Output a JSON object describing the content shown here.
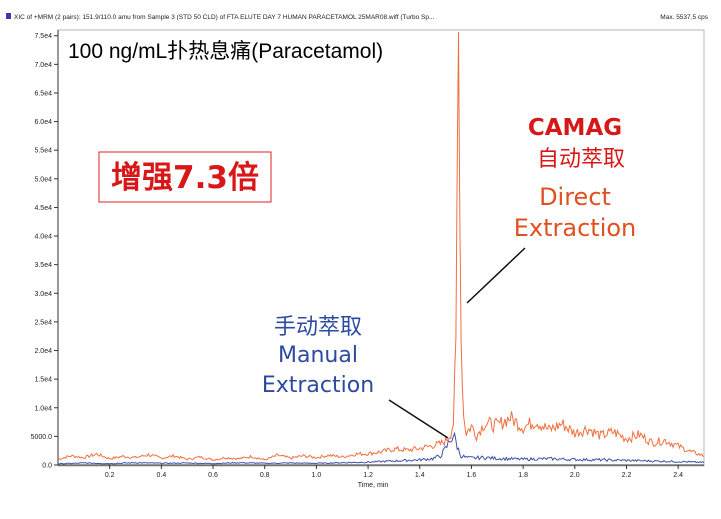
{
  "header": {
    "left": "XIC of +MRM (2 pairs): 151.9/110.0 amu from Sample 3 (STD 50 CLD) of FTA ELUTE DAY 7 HUMAN PARACETAMOL 25MAR08.wiff (Turbo Sp...",
    "right": "Max. 5537.5 cps"
  },
  "title": "100 ng/mL扑热息痛(Paracetamol)",
  "enhancement_label": "增强7.3倍",
  "annotations": {
    "camag": "CAMAG",
    "auto_extraction_cn": "自动萃取",
    "direct_line1": "Direct",
    "direct_line2": "Extraction",
    "manual_cn": "手动萃取",
    "manual_line1": "Manual",
    "manual_line2": "Extraction"
  },
  "colors": {
    "direct": "#f07040",
    "manual": "#3d50a8",
    "annotation_red": "#d81818",
    "manual_text": "#2c4aa0",
    "enhance_box": "#e02020"
  },
  "chart_data": {
    "type": "line",
    "title": "100 ng/mL扑热息痛(Paracetamol)",
    "xlabel": "Time, min",
    "ylabel": "",
    "xlim": [
      0.0,
      2.5
    ],
    "ylim": [
      0,
      76000
    ],
    "x_ticks": [
      0.2,
      0.4,
      0.6,
      0.8,
      1.0,
      1.2,
      1.4,
      1.6,
      1.8,
      2.0,
      2.2,
      2.4
    ],
    "x_tick_labels": [
      "0.2",
      "0.4",
      "0.6",
      "0.8",
      "1.0",
      "1.2",
      "1.4",
      "1.6",
      "1.8",
      "2.0",
      "2.2",
      "2.4"
    ],
    "y_ticks": [
      0,
      5000,
      10000,
      15000,
      20000,
      25000,
      30000,
      35000,
      40000,
      45000,
      50000,
      55000,
      60000,
      65000,
      70000,
      75000
    ],
    "y_tick_labels": [
      "0.0",
      "5000.0",
      "1.0e4",
      "1.5e4",
      "2.0e4",
      "2.5e4",
      "3.0e4",
      "3.5e4",
      "4.0e4",
      "4.5e4",
      "5.0e4",
      "5.5e4",
      "6.0e4",
      "6.5e4",
      "7.0e4",
      "7.5e4"
    ],
    "grid": false,
    "series": [
      {
        "name": "Direct Extraction",
        "color": "#f07040",
        "x": [
          0.0,
          0.05,
          0.1,
          0.15,
          0.2,
          0.25,
          0.3,
          0.35,
          0.4,
          0.45,
          0.5,
          0.55,
          0.6,
          0.65,
          0.7,
          0.75,
          0.8,
          0.85,
          0.9,
          0.95,
          1.0,
          1.05,
          1.1,
          1.15,
          1.2,
          1.25,
          1.3,
          1.35,
          1.4,
          1.45,
          1.48,
          1.5,
          1.52,
          1.53,
          1.54,
          1.545,
          1.55,
          1.555,
          1.56,
          1.57,
          1.58,
          1.6,
          1.62,
          1.65,
          1.7,
          1.75,
          1.8,
          1.85,
          1.9,
          1.95,
          2.0,
          2.05,
          2.1,
          2.15,
          2.2,
          2.25,
          2.3,
          2.35,
          2.4,
          2.45,
          2.5
        ],
        "values": [
          1000,
          1600,
          1300,
          1900,
          1100,
          1500,
          1300,
          1800,
          1200,
          1600,
          1000,
          1400,
          900,
          1300,
          1100,
          1500,
          900,
          1700,
          1200,
          1600,
          1300,
          1700,
          1400,
          1900,
          2000,
          2300,
          2800,
          2600,
          2900,
          3400,
          3700,
          4200,
          5500,
          7500,
          20000,
          50000,
          75500,
          52000,
          22000,
          8500,
          5600,
          6800,
          5200,
          7300,
          6900,
          8300,
          6600,
          7700,
          6100,
          7200,
          5600,
          6400,
          5100,
          5800,
          4600,
          5300,
          3900,
          4300,
          3300,
          2300,
          1600
        ]
      },
      {
        "name": "Manual Extraction",
        "color": "#3d50a8",
        "x": [
          0.0,
          0.1,
          0.2,
          0.3,
          0.4,
          0.5,
          0.6,
          0.7,
          0.8,
          0.9,
          1.0,
          1.1,
          1.2,
          1.3,
          1.4,
          1.45,
          1.48,
          1.5,
          1.52,
          1.53,
          1.54,
          1.55,
          1.56,
          1.58,
          1.6,
          1.65,
          1.7,
          1.8,
          1.9,
          2.0,
          2.1,
          2.2,
          2.3,
          2.4,
          2.5
        ],
        "values": [
          200,
          350,
          250,
          400,
          300,
          350,
          250,
          400,
          300,
          350,
          300,
          400,
          500,
          700,
          900,
          1100,
          1600,
          2800,
          4600,
          5200,
          4100,
          2600,
          1600,
          1300,
          1200,
          1300,
          1150,
          1000,
          1100,
          950,
          900,
          800,
          700,
          600,
          450
        ]
      }
    ]
  }
}
